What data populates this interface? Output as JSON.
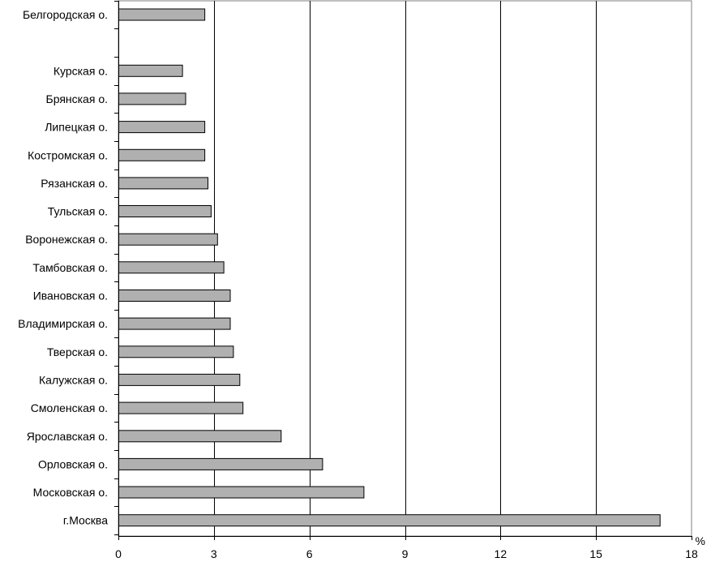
{
  "chart_data": {
    "type": "bar",
    "orientation": "horizontal",
    "unit_label": "%",
    "xlim": [
      0,
      18
    ],
    "x_ticks": [
      "0",
      "3",
      "6",
      "9",
      "12",
      "15",
      "18"
    ],
    "grid": true,
    "legend": "none",
    "bar_color": "#b0b0b0",
    "categories": [
      "Белгородская о.",
      "",
      "Курская о.",
      "Брянская о.",
      "Липецкая о.",
      "Костромская о.",
      "Рязанская о.",
      "Тульская о.",
      "Воронежская о.",
      "Тамбовская о.",
      "Ивановская о.",
      "Владимирская о.",
      "Тверская о.",
      "Калужская о.",
      "Смоленская о.",
      "Ярославская о.",
      "Орловская о.",
      "Московская о.",
      "г.Москва"
    ],
    "values": [
      2.7,
      null,
      2.0,
      2.1,
      2.7,
      2.7,
      2.8,
      2.9,
      3.1,
      3.3,
      3.5,
      3.5,
      3.6,
      3.8,
      3.9,
      5.1,
      6.4,
      7.7,
      17.0
    ]
  }
}
